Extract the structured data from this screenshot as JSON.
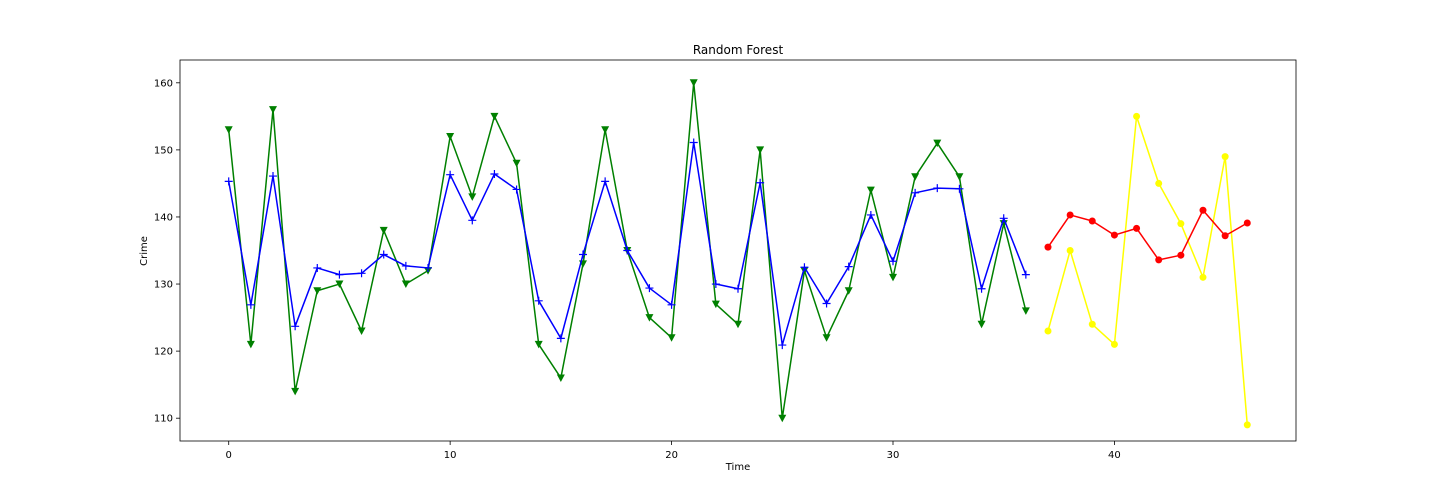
{
  "chart_data": {
    "type": "line",
    "title": "Random Forest",
    "xlabel": "Time",
    "ylabel": "Crime",
    "xlim": [
      -2.2,
      48.2
    ],
    "ylim": [
      106.6,
      163.4
    ],
    "xticks": [
      0,
      10,
      20,
      30,
      40
    ],
    "yticks": [
      110,
      120,
      130,
      140,
      150,
      160
    ],
    "grid": false,
    "legend": "none",
    "series": [
      {
        "color": "#008000",
        "marker": "triangle-down",
        "x": [
          0,
          1,
          2,
          3,
          4,
          5,
          6,
          7,
          8,
          9,
          10,
          11,
          12,
          13,
          14,
          15,
          16,
          17,
          18,
          19,
          20,
          21,
          22,
          23,
          24,
          25,
          26,
          27,
          28,
          29,
          30,
          31,
          32,
          33,
          34,
          35,
          36
        ],
        "values": [
          153,
          121,
          156,
          114,
          129,
          130,
          123,
          138,
          130,
          132,
          152,
          143,
          155,
          148,
          121,
          116,
          133,
          153,
          135,
          125,
          122,
          160,
          127,
          124,
          150,
          110,
          132,
          122,
          129,
          144,
          131,
          146,
          151,
          146,
          124,
          139,
          126
        ]
      },
      {
        "color": "#0000ff",
        "marker": "plus",
        "x": [
          0,
          1,
          2,
          3,
          4,
          5,
          6,
          7,
          8,
          9,
          10,
          11,
          12,
          13,
          14,
          15,
          16,
          17,
          18,
          19,
          20,
          21,
          22,
          23,
          24,
          25,
          26,
          27,
          28,
          29,
          30,
          31,
          32,
          33,
          34,
          35,
          36
        ],
        "values": [
          145.3,
          126.9,
          146.1,
          123.7,
          132.4,
          131.4,
          131.6,
          134.4,
          132.7,
          132.4,
          146.3,
          139.5,
          146.4,
          144.1,
          127.5,
          121.9,
          134.4,
          145.3,
          135.0,
          129.4,
          126.9,
          151.1,
          130.0,
          129.3,
          145.1,
          120.9,
          132.5,
          127.1,
          132.6,
          140.3,
          133.4,
          143.6,
          144.3,
          144.2,
          129.3,
          139.8,
          131.4
        ]
      },
      {
        "color": "#ffff00",
        "marker": "circle",
        "x": [
          37,
          38,
          39,
          40,
          41,
          42,
          43,
          44,
          45,
          46
        ],
        "values": [
          123,
          135,
          124,
          121,
          155,
          145,
          139,
          131,
          149,
          109
        ]
      },
      {
        "color": "#ff0000",
        "marker": "circle",
        "x": [
          37,
          38,
          39,
          40,
          41,
          42,
          43,
          44,
          45,
          46
        ],
        "values": [
          135.5,
          140.3,
          139.4,
          137.3,
          138.3,
          133.6,
          134.3,
          141.0,
          137.2,
          139.1
        ]
      }
    ]
  }
}
